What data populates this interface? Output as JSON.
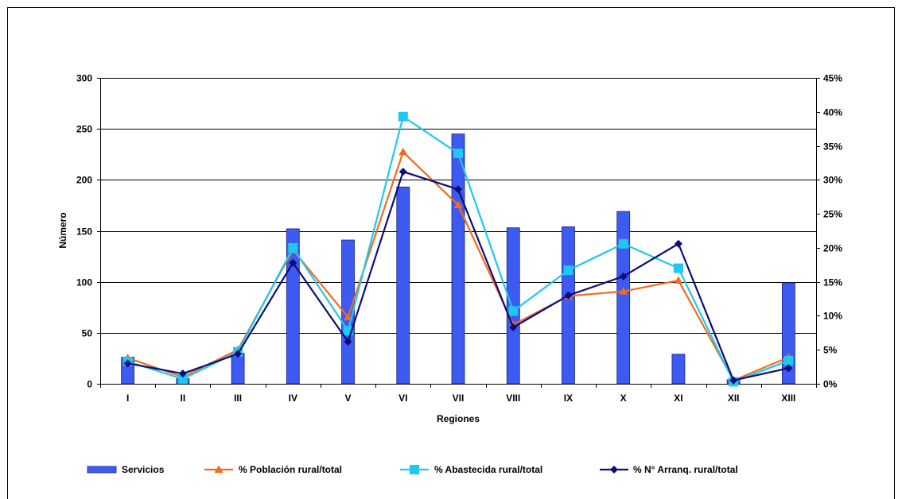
{
  "chart_data": {
    "type": "bar",
    "categories": [
      "I",
      "II",
      "III",
      "IV",
      "V",
      "VI",
      "VII",
      "VIII",
      "IX",
      "X",
      "XI",
      "XII",
      "XIII"
    ],
    "xlabel": "Regiones",
    "ylabel": "Número",
    "ylim": [
      0,
      300
    ],
    "y_ticks": [
      "0",
      "50",
      "100",
      "150",
      "200",
      "250",
      "300"
    ],
    "y2lim": [
      0,
      0.45
    ],
    "y2_ticks": [
      "0%",
      "5%",
      "10%",
      "15%",
      "20%",
      "25%",
      "30%",
      "35%",
      "40%",
      "45%"
    ],
    "grid": "horizontal",
    "legend_position": "bottom",
    "series": [
      {
        "name": "Servicios",
        "type": "bar",
        "axis": "left",
        "color": "#3D5AF1",
        "values": [
          26,
          5,
          30,
          152,
          141,
          193,
          245,
          153,
          154,
          169,
          29,
          4,
          99
        ]
      },
      {
        "name": "% Población rural/total",
        "type": "line",
        "marker": "triangle",
        "axis": "right",
        "color": "#F26B1D",
        "values": [
          0.038,
          0.01,
          0.05,
          0.197,
          0.098,
          0.341,
          0.263,
          0.087,
          0.129,
          0.136,
          0.152,
          0.005,
          0.039
        ]
      },
      {
        "name": "% Abastecida rural/total",
        "type": "line",
        "marker": "square",
        "axis": "right",
        "color": "#1EC8F0",
        "values": [
          0.033,
          0.007,
          0.047,
          0.2,
          0.078,
          0.393,
          0.339,
          0.107,
          0.167,
          0.206,
          0.17,
          0.003,
          0.034
        ]
      },
      {
        "name": "% N° Arranq. rural/total",
        "type": "line",
        "marker": "diamond",
        "axis": "right",
        "color": "#0D0D7A",
        "values": [
          0.03,
          0.015,
          0.044,
          0.178,
          0.062,
          0.312,
          0.286,
          0.083,
          0.13,
          0.158,
          0.206,
          0.005,
          0.023
        ]
      }
    ]
  }
}
